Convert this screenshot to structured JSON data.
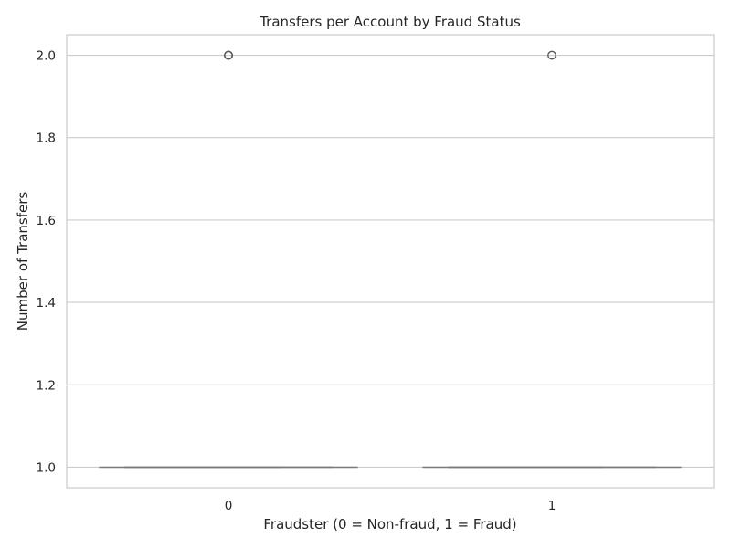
{
  "chart_data": {
    "type": "box",
    "title": "Transfers per Account by Fraud Status",
    "xlabel": "Fraudster (0 = Non-fraud, 1 = Fraud)",
    "ylabel": "Number of Transfers",
    "categories": [
      "0",
      "1"
    ],
    "ylim": [
      0.95,
      2.05
    ],
    "yticks": [
      1.0,
      1.2,
      1.4,
      1.6,
      1.8,
      2.0
    ],
    "ytick_labels": [
      "1.0",
      "1.2",
      "1.4",
      "1.6",
      "1.8",
      "2.0"
    ],
    "grid": true,
    "boxes": [
      {
        "category": "0",
        "q1": 1.0,
        "median": 1.0,
        "q3": 1.0,
        "whisker_low": 1.0,
        "whisker_high": 1.0,
        "outliers": [
          2.0,
          2.0,
          2.0
        ]
      },
      {
        "category": "1",
        "q1": 1.0,
        "median": 1.0,
        "q3": 1.0,
        "whisker_low": 1.0,
        "whisker_high": 1.0,
        "outliers": [
          2.0
        ]
      }
    ],
    "colors": {
      "box": "#7a7a7a",
      "grid": "#cccccc",
      "outlier": "#5a5a5a"
    }
  }
}
